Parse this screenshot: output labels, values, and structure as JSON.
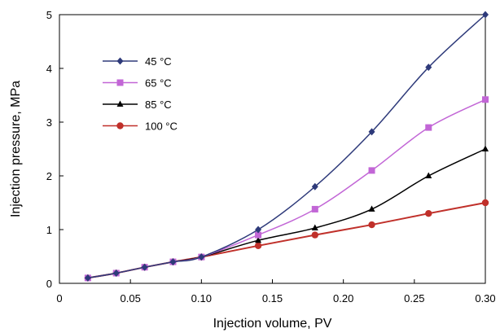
{
  "chart_data": {
    "type": "line",
    "xlabel": "Injection volume, PV",
    "ylabel": "Injection pressure, MPa",
    "xlim": [
      0,
      0.3
    ],
    "ylim": [
      0,
      5
    ],
    "xticks": [
      "0",
      "0.05",
      "0.10",
      "0.15",
      "0.20",
      "0.25",
      "0.30"
    ],
    "yticks": [
      "0",
      "1",
      "2",
      "3",
      "4",
      "5"
    ],
    "grid": false,
    "legend_position": "top-left",
    "series": [
      {
        "name": "45 °C",
        "color": "#2e3a7a",
        "marker": "diamond",
        "x": [
          0.02,
          0.04,
          0.06,
          0.08,
          0.1,
          0.14,
          0.18,
          0.22,
          0.26,
          0.3
        ],
        "y": [
          0.1,
          0.19,
          0.3,
          0.4,
          0.49,
          1.0,
          1.8,
          2.82,
          4.02,
          5.0
        ]
      },
      {
        "name": "65 °C",
        "color": "#c266d6",
        "marker": "square",
        "x": [
          0.02,
          0.04,
          0.06,
          0.08,
          0.1,
          0.14,
          0.18,
          0.22,
          0.26,
          0.3
        ],
        "y": [
          0.1,
          0.19,
          0.3,
          0.4,
          0.49,
          0.9,
          1.38,
          2.1,
          2.9,
          3.42
        ]
      },
      {
        "name": "85 °C",
        "color": "#000000",
        "marker": "triangle",
        "x": [
          0.02,
          0.04,
          0.06,
          0.08,
          0.1,
          0.14,
          0.18,
          0.22,
          0.26,
          0.3
        ],
        "y": [
          0.1,
          0.19,
          0.3,
          0.4,
          0.49,
          0.8,
          1.03,
          1.38,
          2.0,
          2.5
        ]
      },
      {
        "name": "100 °C",
        "color": "#c0302a",
        "marker": "circle",
        "x": [
          0.02,
          0.04,
          0.06,
          0.08,
          0.1,
          0.14,
          0.18,
          0.22,
          0.26,
          0.3
        ],
        "y": [
          0.1,
          0.19,
          0.3,
          0.4,
          0.49,
          0.7,
          0.9,
          1.09,
          1.3,
          1.5
        ]
      }
    ]
  }
}
